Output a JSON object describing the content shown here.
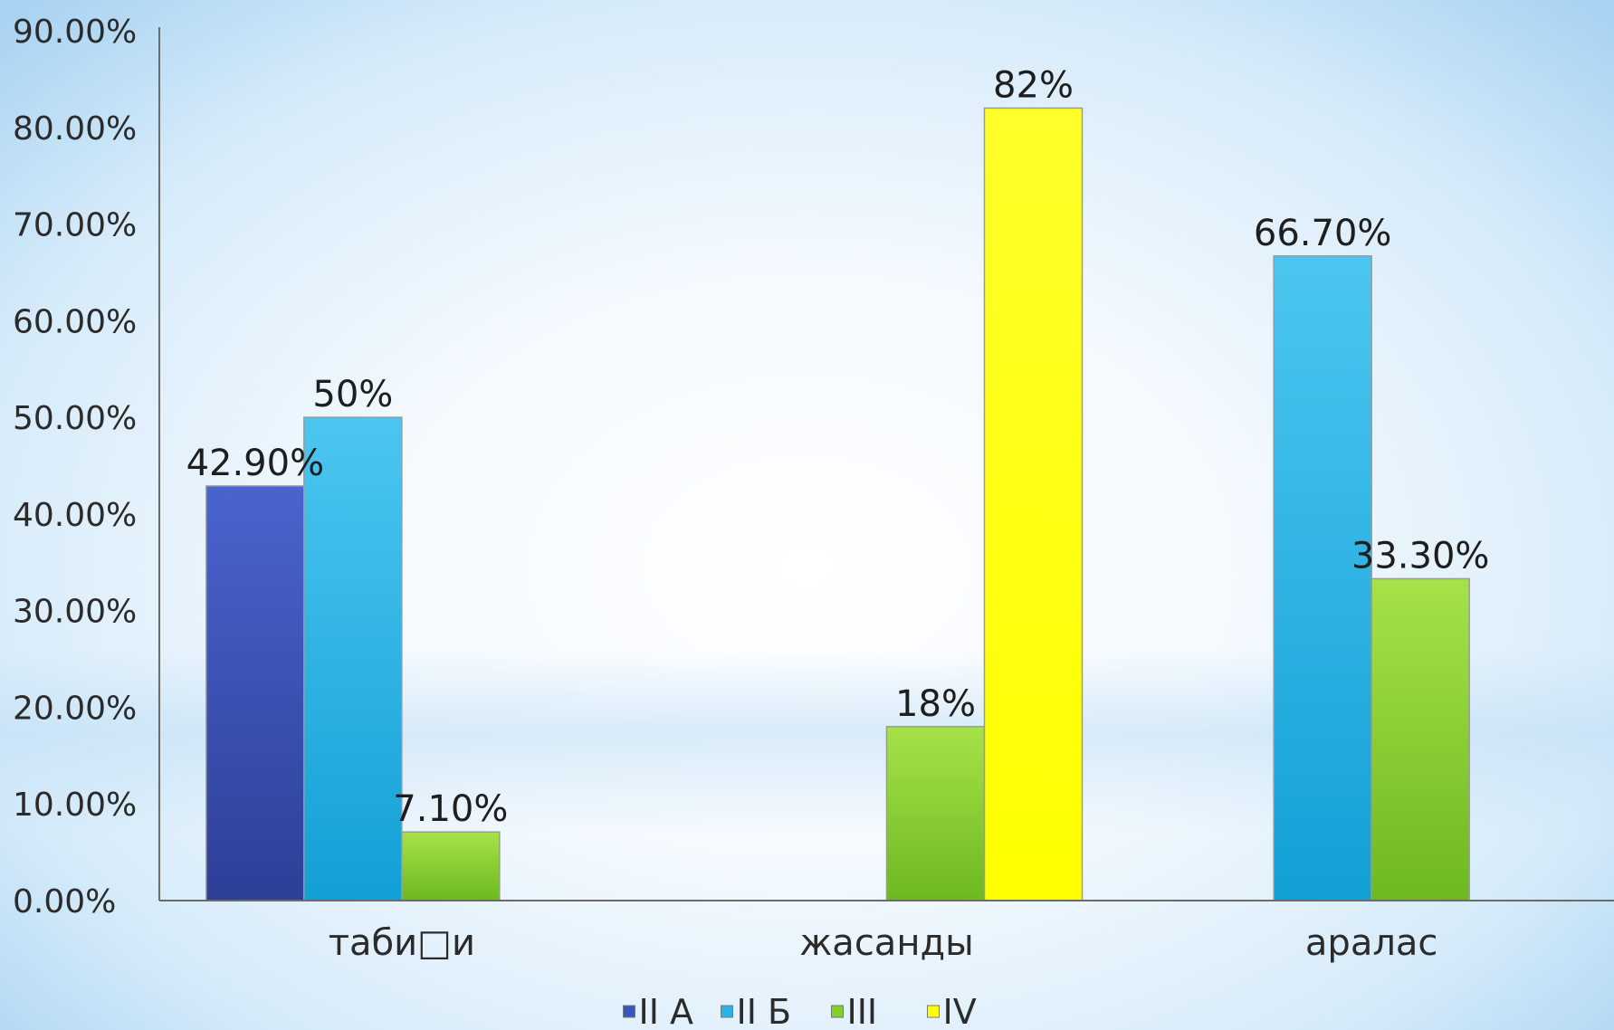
{
  "chart_data": {
    "type": "bar",
    "title": "",
    "xlabel": "",
    "ylabel": "",
    "ylim": [
      0,
      90
    ],
    "y_ticks": [
      "0.00%",
      "10.00%",
      "20.00%",
      "30.00%",
      "40.00%",
      "50.00%",
      "60.00%",
      "70.00%",
      "80.00%",
      "90.00%"
    ],
    "categories": [
      "таби□и",
      "жасанды",
      "аралас"
    ],
    "series": [
      {
        "name": "II А",
        "color": "#3a55c0",
        "values": [
          42.9,
          null,
          null
        ],
        "labels": [
          "42.90%",
          null,
          null
        ]
      },
      {
        "name": "II Б",
        "color": "#2ab3e6",
        "values": [
          50,
          null,
          66.7
        ],
        "labels": [
          "50%",
          null,
          "66.70%"
        ]
      },
      {
        "name": "III",
        "color": "#84cf2c",
        "values": [
          7.1,
          18,
          33.3
        ],
        "labels": [
          "7.10%",
          "18%",
          "33.30%"
        ]
      },
      {
        "name": "IV",
        "color": "#ffff00",
        "values": [
          null,
          82,
          null
        ],
        "labels": [
          null,
          "82%",
          null
        ]
      }
    ],
    "legend_position": "bottom",
    "grid": false
  }
}
